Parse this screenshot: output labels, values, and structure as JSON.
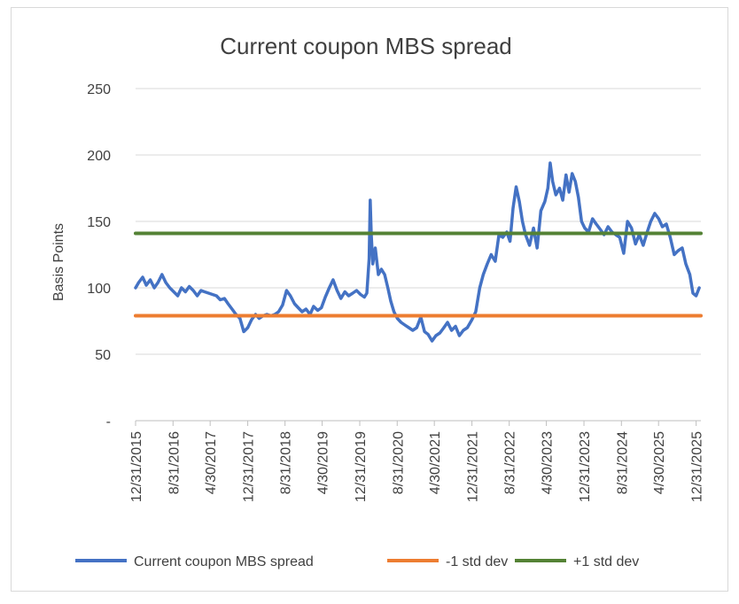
{
  "chart_data": {
    "type": "line",
    "title": "Current coupon MBS spread",
    "ylabel": "Basis Points",
    "xlabel": "",
    "ylim": [
      0,
      250
    ],
    "yticks": [
      {
        "value": 0,
        "label": "-"
      },
      {
        "value": 50,
        "label": "50"
      },
      {
        "value": 100,
        "label": "100"
      },
      {
        "value": 150,
        "label": "150"
      },
      {
        "value": 200,
        "label": "200"
      },
      {
        "value": 250,
        "label": "250"
      }
    ],
    "xlim": [
      "2015-12-31",
      "2026-01-31"
    ],
    "xticks": [
      {
        "date": "2015-12-31",
        "label": "12/31/2015"
      },
      {
        "date": "2016-08-31",
        "label": "8/31/2016"
      },
      {
        "date": "2017-04-30",
        "label": "4/30/2017"
      },
      {
        "date": "2017-12-31",
        "label": "12/31/2017"
      },
      {
        "date": "2018-08-31",
        "label": "8/31/2018"
      },
      {
        "date": "2019-04-30",
        "label": "4/30/2019"
      },
      {
        "date": "2019-12-31",
        "label": "12/31/2019"
      },
      {
        "date": "2020-08-31",
        "label": "8/31/2020"
      },
      {
        "date": "2021-04-30",
        "label": "4/30/2021"
      },
      {
        "date": "2021-12-31",
        "label": "12/31/2021"
      },
      {
        "date": "2022-08-31",
        "label": "8/31/2022"
      },
      {
        "date": "2023-04-30",
        "label": "4/30/2023"
      },
      {
        "date": "2023-12-31",
        "label": "12/31/2023"
      },
      {
        "date": "2024-08-31",
        "label": "8/31/2024"
      },
      {
        "date": "2025-04-30",
        "label": "4/30/2025"
      },
      {
        "date": "2025-12-31",
        "label": "12/31/2025"
      }
    ],
    "grid": true,
    "legend_position": "bottom",
    "series": [
      {
        "name": "Current coupon MBS spread",
        "color": "#4472C4",
        "points": [
          [
            "2015-12-31",
            100
          ],
          [
            "2016-01-20",
            104
          ],
          [
            "2016-02-15",
            108
          ],
          [
            "2016-03-10",
            102
          ],
          [
            "2016-04-05",
            106
          ],
          [
            "2016-05-01",
            100
          ],
          [
            "2016-05-25",
            104
          ],
          [
            "2016-06-20",
            110
          ],
          [
            "2016-07-15",
            104
          ],
          [
            "2016-08-10",
            100
          ],
          [
            "2016-09-05",
            97
          ],
          [
            "2016-10-01",
            94
          ],
          [
            "2016-10-25",
            100
          ],
          [
            "2016-11-20",
            97
          ],
          [
            "2016-12-15",
            101
          ],
          [
            "2017-01-10",
            98
          ],
          [
            "2017-02-05",
            94
          ],
          [
            "2017-03-01",
            98
          ],
          [
            "2017-03-25",
            97
          ],
          [
            "2017-04-20",
            96
          ],
          [
            "2017-05-15",
            95
          ],
          [
            "2017-06-10",
            94
          ],
          [
            "2017-07-05",
            91
          ],
          [
            "2017-08-01",
            92
          ],
          [
            "2017-08-25",
            88
          ],
          [
            "2017-09-20",
            84
          ],
          [
            "2017-10-15",
            80
          ],
          [
            "2017-11-10",
            77
          ],
          [
            "2017-12-05",
            67
          ],
          [
            "2017-12-31",
            70
          ],
          [
            "2018-01-25",
            76
          ],
          [
            "2018-02-20",
            80
          ],
          [
            "2018-03-15",
            77
          ],
          [
            "2018-04-10",
            79
          ],
          [
            "2018-05-05",
            80
          ],
          [
            "2018-06-01",
            79
          ],
          [
            "2018-06-25",
            80
          ],
          [
            "2018-07-20",
            82
          ],
          [
            "2018-08-15",
            87
          ],
          [
            "2018-09-10",
            98
          ],
          [
            "2018-10-05",
            94
          ],
          [
            "2018-11-01",
            88
          ],
          [
            "2018-11-25",
            85
          ],
          [
            "2018-12-20",
            82
          ],
          [
            "2019-01-15",
            84
          ],
          [
            "2019-02-10",
            80
          ],
          [
            "2019-03-05",
            86
          ],
          [
            "2019-04-01",
            83
          ],
          [
            "2019-04-25",
            85
          ],
          [
            "2019-05-20",
            93
          ],
          [
            "2019-06-15",
            100
          ],
          [
            "2019-07-10",
            106
          ],
          [
            "2019-08-05",
            98
          ],
          [
            "2019-08-30",
            92
          ],
          [
            "2019-09-25",
            97
          ],
          [
            "2019-10-20",
            94
          ],
          [
            "2019-11-15",
            96
          ],
          [
            "2019-12-10",
            98
          ],
          [
            "2020-01-05",
            95
          ],
          [
            "2020-01-30",
            93
          ],
          [
            "2020-02-15",
            96
          ],
          [
            "2020-03-01",
            122
          ],
          [
            "2020-03-08",
            166
          ],
          [
            "2020-03-15",
            140
          ],
          [
            "2020-03-25",
            118
          ],
          [
            "2020-04-10",
            130
          ],
          [
            "2020-04-30",
            110
          ],
          [
            "2020-05-20",
            114
          ],
          [
            "2020-06-10",
            110
          ],
          [
            "2020-07-01",
            100
          ],
          [
            "2020-07-20",
            90
          ],
          [
            "2020-08-10",
            82
          ],
          [
            "2020-09-01",
            77
          ],
          [
            "2020-09-25",
            74
          ],
          [
            "2020-10-20",
            72
          ],
          [
            "2020-11-15",
            70
          ],
          [
            "2020-12-10",
            68
          ],
          [
            "2021-01-05",
            70
          ],
          [
            "2021-02-01",
            78
          ],
          [
            "2021-02-25",
            67
          ],
          [
            "2021-03-20",
            65
          ],
          [
            "2021-04-15",
            60
          ],
          [
            "2021-05-10",
            64
          ],
          [
            "2021-06-05",
            66
          ],
          [
            "2021-07-01",
            70
          ],
          [
            "2021-07-25",
            74
          ],
          [
            "2021-08-20",
            68
          ],
          [
            "2021-09-15",
            71
          ],
          [
            "2021-10-10",
            64
          ],
          [
            "2021-11-05",
            68
          ],
          [
            "2021-12-01",
            70
          ],
          [
            "2021-12-31",
            76
          ],
          [
            "2022-01-25",
            82
          ],
          [
            "2022-02-20",
            100
          ],
          [
            "2022-03-15",
            110
          ],
          [
            "2022-04-10",
            118
          ],
          [
            "2022-05-05",
            125
          ],
          [
            "2022-06-01",
            120
          ],
          [
            "2022-06-25",
            140
          ],
          [
            "2022-07-20",
            138
          ],
          [
            "2022-08-15",
            142
          ],
          [
            "2022-09-05",
            135
          ],
          [
            "2022-09-25",
            160
          ],
          [
            "2022-10-15",
            176
          ],
          [
            "2022-11-05",
            165
          ],
          [
            "2022-11-25",
            150
          ],
          [
            "2022-12-15",
            140
          ],
          [
            "2023-01-10",
            132
          ],
          [
            "2023-02-05",
            145
          ],
          [
            "2023-03-01",
            130
          ],
          [
            "2023-03-25",
            158
          ],
          [
            "2023-04-20",
            165
          ],
          [
            "2023-05-10",
            175
          ],
          [
            "2023-05-25",
            194
          ],
          [
            "2023-06-10",
            180
          ],
          [
            "2023-07-01",
            170
          ],
          [
            "2023-07-25",
            175
          ],
          [
            "2023-08-15",
            166
          ],
          [
            "2023-09-05",
            185
          ],
          [
            "2023-09-25",
            172
          ],
          [
            "2023-10-15",
            186
          ],
          [
            "2023-11-05",
            180
          ],
          [
            "2023-11-25",
            168
          ],
          [
            "2023-12-15",
            150
          ],
          [
            "2024-01-05",
            145
          ],
          [
            "2024-01-30",
            142
          ],
          [
            "2024-02-25",
            152
          ],
          [
            "2024-03-20",
            148
          ],
          [
            "2024-04-15",
            144
          ],
          [
            "2024-05-10",
            140
          ],
          [
            "2024-06-05",
            146
          ],
          [
            "2024-07-01",
            142
          ],
          [
            "2024-07-25",
            140
          ],
          [
            "2024-08-20",
            138
          ],
          [
            "2024-09-15",
            126
          ],
          [
            "2024-10-10",
            150
          ],
          [
            "2024-11-05",
            145
          ],
          [
            "2024-12-01",
            133
          ],
          [
            "2024-12-25",
            140
          ],
          [
            "2025-01-20",
            132
          ],
          [
            "2025-02-15",
            142
          ],
          [
            "2025-03-10",
            150
          ],
          [
            "2025-04-05",
            156
          ],
          [
            "2025-05-01",
            152
          ],
          [
            "2025-05-25",
            146
          ],
          [
            "2025-06-20",
            148
          ],
          [
            "2025-07-15",
            138
          ],
          [
            "2025-08-10",
            125
          ],
          [
            "2025-09-05",
            128
          ],
          [
            "2025-10-01",
            130
          ],
          [
            "2025-10-25",
            118
          ],
          [
            "2025-11-20",
            110
          ],
          [
            "2025-12-10",
            96
          ],
          [
            "2025-12-31",
            94
          ],
          [
            "2026-01-20",
            100
          ]
        ]
      },
      {
        "name": "-1 std dev",
        "color": "#ED7D31",
        "points": [
          [
            "2015-12-31",
            79
          ],
          [
            "2026-01-31",
            79
          ]
        ]
      },
      {
        "name": "+1 std dev",
        "color": "#548235",
        "points": [
          [
            "2015-12-31",
            141
          ],
          [
            "2026-01-31",
            141
          ]
        ]
      }
    ]
  }
}
